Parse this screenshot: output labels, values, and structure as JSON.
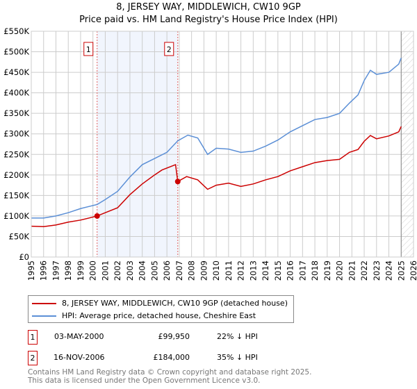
{
  "chart_data": {
    "type": "line",
    "title": "8, JERSEY WAY, MIDDLEWICH, CW10 9GP",
    "subtitle": "Price paid vs. HM Land Registry's House Price Index (HPI)",
    "xlim": [
      1995,
      2026
    ],
    "ylim": [
      0,
      550000
    ],
    "x_ticks": [
      "1995",
      "1996",
      "1997",
      "1998",
      "1999",
      "2000",
      "2001",
      "2002",
      "2003",
      "2004",
      "2005",
      "2006",
      "2007",
      "2008",
      "2009",
      "2010",
      "2011",
      "2012",
      "2013",
      "2014",
      "2015",
      "2016",
      "2017",
      "2018",
      "2019",
      "2020",
      "2021",
      "2022",
      "2023",
      "2024",
      "2025",
      "2026"
    ],
    "y_ticks": [
      {
        "v": 0,
        "label": "£0"
      },
      {
        "v": 50000,
        "label": "£50K"
      },
      {
        "v": 100000,
        "label": "£100K"
      },
      {
        "v": 150000,
        "label": "£150K"
      },
      {
        "v": 200000,
        "label": "£200K"
      },
      {
        "v": 250000,
        "label": "£250K"
      },
      {
        "v": 300000,
        "label": "£300K"
      },
      {
        "v": 350000,
        "label": "£350K"
      },
      {
        "v": 400000,
        "label": "£400K"
      },
      {
        "v": 450000,
        "label": "£450K"
      },
      {
        "v": 500000,
        "label": "£500K"
      },
      {
        "v": 550000,
        "label": "£550K"
      }
    ],
    "grid": true,
    "shaded_range": [
      2000.34,
      2006.88
    ],
    "forecast_hatch_from": 2025.0,
    "series": [
      {
        "name": "8, JERSEY WAY, MIDDLEWICH, CW10 9GP (detached house)",
        "color": "#cc0000",
        "x": [
          1995,
          1996,
          1997,
          1998,
          1999,
          2000.34,
          2001,
          2002,
          2003,
          2004,
          2005,
          2005.6,
          2006.7,
          2006.88,
          2007.6,
          2008.5,
          2009.3,
          2010,
          2011,
          2012,
          2013,
          2014,
          2015,
          2016,
          2017,
          2018,
          2019,
          2020,
          2020.8,
          2021.5,
          2022,
          2022.5,
          2023,
          2024,
          2024.8,
          2025.0
        ],
        "y": [
          75000,
          74000,
          78000,
          85000,
          90000,
          99950,
          108000,
          120000,
          152000,
          178000,
          200000,
          212000,
          225000,
          184000,
          196000,
          188000,
          165000,
          175000,
          180000,
          172000,
          178000,
          188000,
          196000,
          210000,
          220000,
          230000,
          235000,
          238000,
          255000,
          262000,
          282000,
          296000,
          288000,
          295000,
          305000,
          318000
        ]
      },
      {
        "name": "HPI: Average price, detached house, Cheshire East",
        "color": "#5b8fd6",
        "x": [
          1995,
          1996,
          1997,
          1998,
          1999,
          2000.34,
          2001,
          2002,
          2003,
          2004,
          2005,
          2006,
          2006.88,
          2007.7,
          2008.5,
          2009.3,
          2010,
          2011,
          2012,
          2013,
          2014,
          2015,
          2016,
          2017,
          2018,
          2019,
          2020,
          2020.8,
          2021.5,
          2022,
          2022.5,
          2023,
          2024,
          2024.8,
          2025.0
        ],
        "y": [
          95000,
          95000,
          100000,
          108000,
          118000,
          128000,
          140000,
          160000,
          195000,
          225000,
          240000,
          255000,
          283000,
          297000,
          290000,
          250000,
          265000,
          263000,
          255000,
          258000,
          270000,
          285000,
          305000,
          320000,
          335000,
          340000,
          350000,
          375000,
          395000,
          430000,
          455000,
          445000,
          450000,
          470000,
          485000
        ]
      }
    ],
    "annotations": [
      {
        "label": "1",
        "x": 2000.34,
        "y": 99950
      },
      {
        "label": "2",
        "x": 2006.88,
        "y": 184000
      }
    ]
  },
  "legend": {
    "property": "8, JERSEY WAY, MIDDLEWICH, CW10 9GP (detached house)",
    "hpi": "HPI: Average price, detached house, Cheshire East"
  },
  "sales": [
    {
      "num": "1",
      "date": "03-MAY-2000",
      "price": "£99,950",
      "delta": "22% ↓ HPI"
    },
    {
      "num": "2",
      "date": "16-NOV-2006",
      "price": "£184,000",
      "delta": "35% ↓ HPI"
    }
  ],
  "footer": {
    "line1": "Contains HM Land Registry data © Crown copyright and database right 2025.",
    "line2": "This data is licensed under the Open Government Licence v3.0."
  }
}
